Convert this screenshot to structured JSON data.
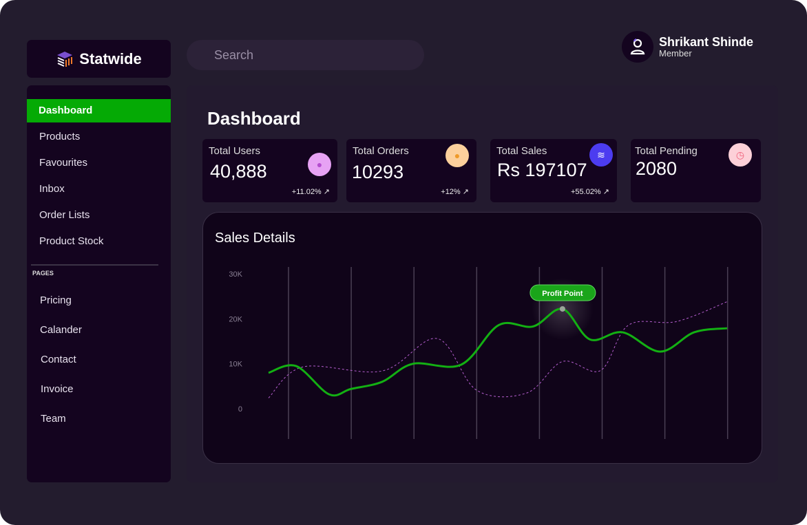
{
  "app": {
    "name": "Statwide"
  },
  "search": {
    "placeholder": "Search"
  },
  "user": {
    "name": "Shrikant Shinde",
    "role": "Member"
  },
  "sidebar": {
    "items": [
      "Dashboard",
      "Products",
      "Favourites",
      "Inbox",
      "Order Lists",
      "Product Stock"
    ],
    "section": "PAGES",
    "pages": [
      "Pricing",
      "Calander",
      "Contact",
      "Invoice",
      "Team"
    ]
  },
  "page": {
    "title": "Dashboard"
  },
  "cards": [
    {
      "label": "Total Users",
      "value": "40,888",
      "change": "+11.02%",
      "icon_color": "#e7a2f4"
    },
    {
      "label": "Total Orders",
      "value": "10293",
      "change": "+12%",
      "icon_color": "#fcd09c"
    },
    {
      "label": "Total Sales",
      "value": "Rs 197107",
      "change": "+55.02%",
      "icon_color": "#4c3cf0"
    },
    {
      "label": "Total Pending",
      "value": "2080",
      "change": null,
      "icon_color": "#fdd0d8"
    }
  ],
  "chart_data": {
    "type": "line",
    "title": "Sales Details",
    "ylim": [
      0,
      30000
    ],
    "yticks": [
      "0",
      "10K",
      "20K",
      "30K"
    ],
    "xlim": [
      0,
      100
    ],
    "annotation": {
      "label": "Profit Point",
      "x": 64.1,
      "y": 22200
    },
    "series": [
      {
        "name": "sales",
        "color": "#13b013",
        "style": "solid",
        "x": [
          0,
          6,
          13.2,
          18,
          24.8,
          31.5,
          42,
          50.2,
          57.7,
          64.1,
          70.1,
          77.2,
          85.4,
          92.8,
          100
        ],
        "y": [
          8000,
          9500,
          3200,
          4400,
          6000,
          10000,
          9800,
          18600,
          18300,
          22200,
          15400,
          17000,
          12700,
          17000,
          17900
        ]
      },
      {
        "name": "secondary",
        "color": "#b55fcf",
        "style": "dashed",
        "x": [
          0,
          7.5,
          24.8,
          36.8,
          45.4,
          56.3,
          64.1,
          72.4,
          78.5,
          89,
          100
        ],
        "y": [
          2400,
          9300,
          8400,
          15600,
          4100,
          3500,
          10500,
          8500,
          18600,
          19400,
          23800
        ]
      }
    ]
  }
}
